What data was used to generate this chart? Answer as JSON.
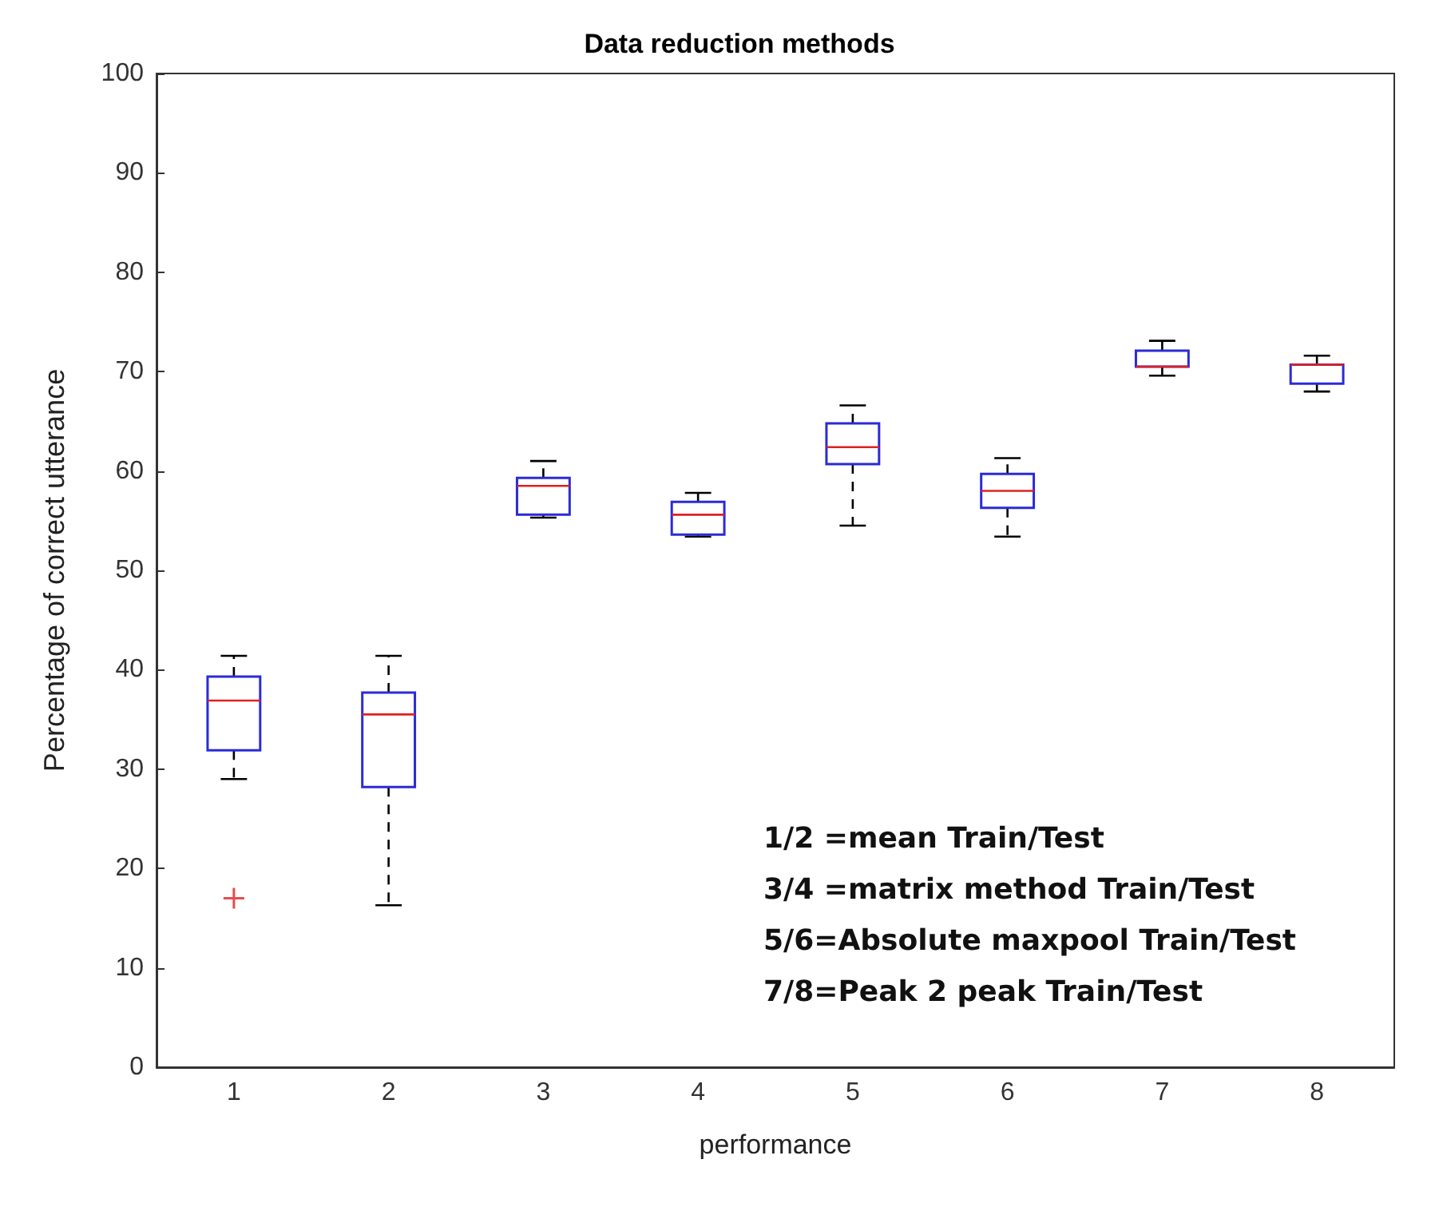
{
  "chart_data": {
    "type": "box",
    "title": "Data reduction methods",
    "xlabel": "performance",
    "ylabel": "Percentage of correct utterance",
    "categories": [
      "1",
      "2",
      "3",
      "4",
      "5",
      "6",
      "7",
      "8"
    ],
    "series": [
      {
        "color": "#2b2bd6",
        "boxes": [
          {
            "low": 29.0,
            "q1": 31.9,
            "median": 36.9,
            "q3": 39.3,
            "high": 41.4,
            "outliers": [
              17.0
            ]
          },
          {
            "low": 16.3,
            "q1": 28.2,
            "median": 35.5,
            "q3": 37.7,
            "high": 41.4
          },
          {
            "low": 55.3,
            "q1": 55.6,
            "median": 58.5,
            "q3": 59.3,
            "high": 61.0
          },
          {
            "low": 53.4,
            "q1": 53.6,
            "median": 55.6,
            "q3": 56.9,
            "high": 57.8
          },
          {
            "low": 54.5,
            "q1": 60.7,
            "median": 62.4,
            "q3": 64.8,
            "high": 66.6
          },
          {
            "low": 53.4,
            "q1": 56.3,
            "median": 58.0,
            "q3": 59.7,
            "high": 61.3
          },
          {
            "low": 69.6,
            "q1": 70.5,
            "median": 70.5,
            "q3": 72.1,
            "high": 73.1
          },
          {
            "low": 68.0,
            "q1": 68.8,
            "median": 70.7,
            "q3": 70.7,
            "high": 71.6
          }
        ]
      }
    ],
    "ylim": [
      0,
      100
    ],
    "yticks": [
      0,
      10,
      20,
      30,
      40,
      50,
      60,
      70,
      80,
      90,
      100
    ],
    "marker": "cross",
    "line_style": "dashed",
    "annotations": [
      "1/2 =mean Train/Test",
      "3/4 =matrix method Train/Test",
      "5/6=Absolute maxpool Train/Test",
      "7/8=Peak 2 peak Train/Test"
    ]
  }
}
